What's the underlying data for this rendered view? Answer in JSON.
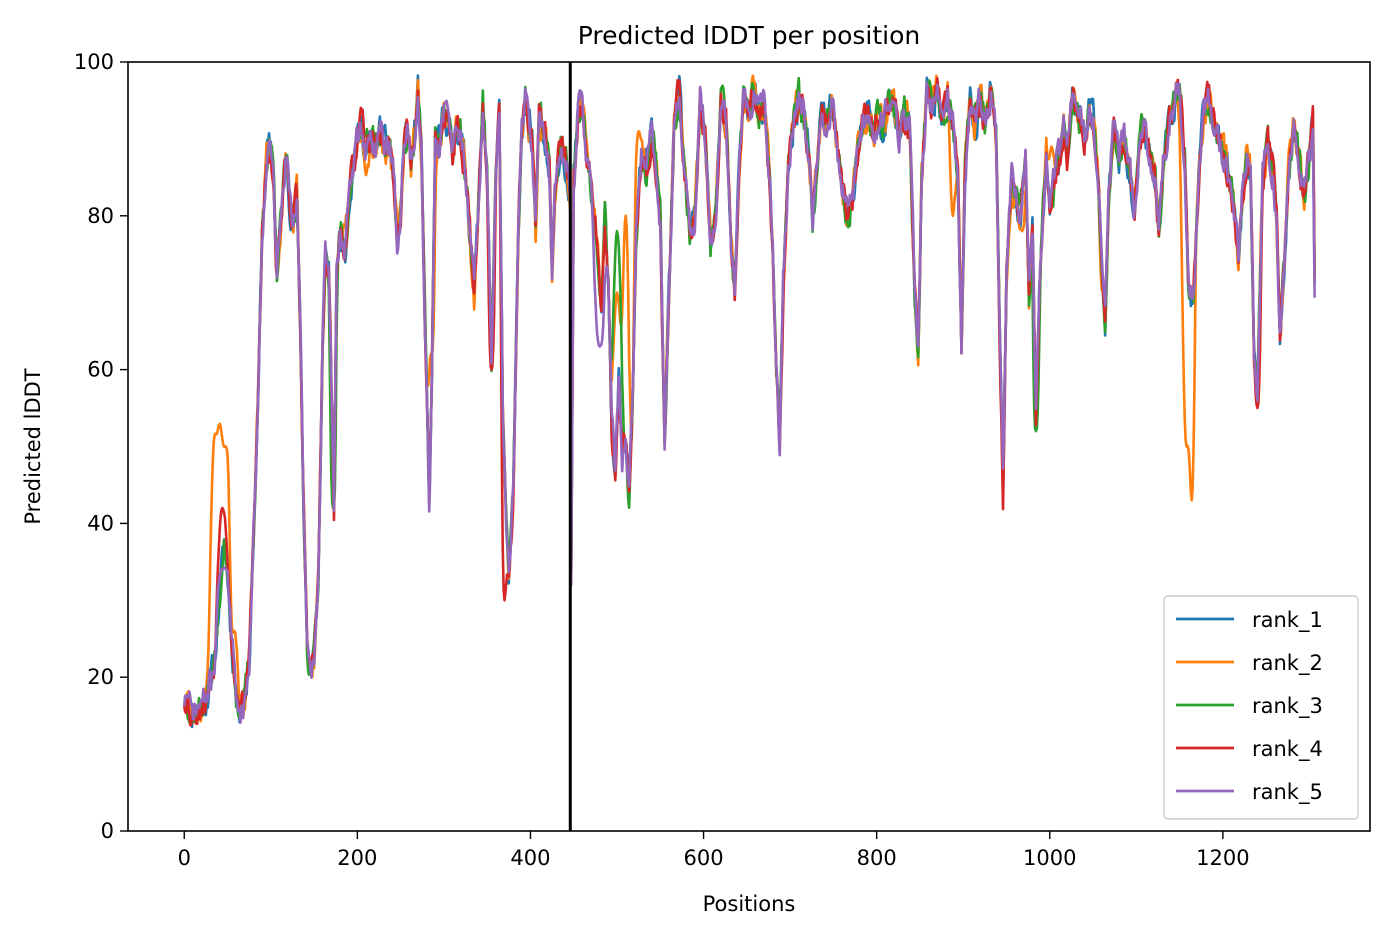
{
  "chart_data": {
    "type": "line",
    "title": "Predicted lDDT per position",
    "xlabel": "Positions",
    "ylabel": "Predicted lDDT",
    "xlim": [
      -65,
      1370
    ],
    "ylim": [
      0,
      100
    ],
    "xticks": [
      0,
      200,
      400,
      600,
      800,
      1000,
      1200
    ],
    "yticks": [
      0,
      20,
      40,
      60,
      80,
      100
    ],
    "grid": false,
    "legend_position": "lower-right",
    "vline": {
      "x": 446,
      "color": "#000000"
    },
    "base_profile": [
      [
        0,
        17
      ],
      [
        3,
        18
      ],
      [
        8,
        15
      ],
      [
        15,
        16
      ],
      [
        25,
        17
      ],
      [
        35,
        22
      ],
      [
        42,
        32
      ],
      [
        46,
        38
      ],
      [
        50,
        33
      ],
      [
        55,
        24
      ],
      [
        60,
        18
      ],
      [
        65,
        16
      ],
      [
        70,
        17
      ],
      [
        75,
        22
      ],
      [
        85,
        55
      ],
      [
        90,
        78
      ],
      [
        95,
        88
      ],
      [
        100,
        89
      ],
      [
        103,
        85
      ],
      [
        107,
        72
      ],
      [
        112,
        80
      ],
      [
        118,
        88
      ],
      [
        122,
        82
      ],
      [
        126,
        79
      ],
      [
        130,
        83
      ],
      [
        134,
        65
      ],
      [
        138,
        42
      ],
      [
        142,
        24
      ],
      [
        146,
        21
      ],
      [
        150,
        23
      ],
      [
        155,
        33
      ],
      [
        160,
        64
      ],
      [
        163,
        74
      ],
      [
        167,
        72
      ],
      [
        170,
        58
      ],
      [
        173,
        43
      ],
      [
        176,
        72
      ],
      [
        180,
        78
      ],
      [
        186,
        76
      ],
      [
        190,
        82
      ],
      [
        195,
        86
      ],
      [
        200,
        90
      ],
      [
        205,
        92
      ],
      [
        210,
        88
      ],
      [
        216,
        90
      ],
      [
        220,
        89
      ],
      [
        226,
        91
      ],
      [
        232,
        89
      ],
      [
        238,
        89
      ],
      [
        242,
        85
      ],
      [
        246,
        77
      ],
      [
        250,
        80
      ],
      [
        254,
        89
      ],
      [
        258,
        91
      ],
      [
        262,
        87
      ],
      [
        266,
        91
      ],
      [
        270,
        96
      ],
      [
        274,
        88
      ],
      [
        277,
        72
      ],
      [
        280,
        58
      ],
      [
        283,
        43
      ],
      [
        286,
        58
      ],
      [
        290,
        90
      ],
      [
        295,
        89
      ],
      [
        300,
        94
      ],
      [
        305,
        92
      ],
      [
        310,
        88
      ],
      [
        315,
        92
      ],
      [
        320,
        90
      ],
      [
        325,
        86
      ],
      [
        330,
        78
      ],
      [
        335,
        70
      ],
      [
        340,
        82
      ],
      [
        345,
        95
      ],
      [
        350,
        85
      ],
      [
        355,
        61
      ],
      [
        360,
        85
      ],
      [
        364,
        93
      ],
      [
        368,
        55
      ],
      [
        372,
        40
      ],
      [
        375,
        32
      ],
      [
        380,
        43
      ],
      [
        386,
        78
      ],
      [
        390,
        91
      ],
      [
        394,
        95
      ],
      [
        398,
        92
      ],
      [
        402,
        90
      ],
      [
        406,
        78
      ],
      [
        410,
        93
      ],
      [
        414,
        92
      ],
      [
        418,
        90
      ],
      [
        422,
        86
      ],
      [
        425,
        72
      ],
      [
        428,
        82
      ],
      [
        432,
        87
      ],
      [
        436,
        89
      ],
      [
        440,
        87
      ],
      [
        444,
        85
      ],
      [
        446,
        83
      ],
      [
        447,
        32
      ],
      [
        450,
        85
      ],
      [
        455,
        93
      ],
      [
        460,
        95
      ],
      [
        465,
        88
      ],
      [
        470,
        84
      ],
      [
        474,
        80
      ],
      [
        478,
        74
      ],
      [
        482,
        66
      ],
      [
        486,
        80
      ],
      [
        490,
        72
      ],
      [
        494,
        52
      ],
      [
        498,
        47
      ],
      [
        502,
        58
      ],
      [
        506,
        49
      ],
      [
        510,
        52
      ],
      [
        514,
        44
      ],
      [
        518,
        55
      ],
      [
        522,
        78
      ],
      [
        528,
        88
      ],
      [
        534,
        86
      ],
      [
        540,
        91
      ],
      [
        546,
        85
      ],
      [
        550,
        80
      ],
      [
        555,
        50
      ],
      [
        560,
        70
      ],
      [
        566,
        92
      ],
      [
        572,
        96
      ],
      [
        578,
        85
      ],
      [
        584,
        78
      ],
      [
        590,
        80
      ],
      [
        596,
        95
      ],
      [
        602,
        90
      ],
      [
        608,
        76
      ],
      [
        614,
        80
      ],
      [
        620,
        95
      ],
      [
        626,
        92
      ],
      [
        632,
        76
      ],
      [
        636,
        70
      ],
      [
        640,
        83
      ],
      [
        646,
        95
      ],
      [
        652,
        92
      ],
      [
        658,
        97
      ],
      [
        664,
        93
      ],
      [
        670,
        95
      ],
      [
        676,
        85
      ],
      [
        680,
        75
      ],
      [
        684,
        60
      ],
      [
        688,
        51
      ],
      [
        692,
        70
      ],
      [
        698,
        86
      ],
      [
        704,
        92
      ],
      [
        710,
        95
      ],
      [
        716,
        93
      ],
      [
        722,
        88
      ],
      [
        726,
        80
      ],
      [
        730,
        85
      ],
      [
        736,
        94
      ],
      [
        742,
        92
      ],
      [
        748,
        95
      ],
      [
        754,
        90
      ],
      [
        760,
        84
      ],
      [
        766,
        80
      ],
      [
        772,
        82
      ],
      [
        778,
        88
      ],
      [
        784,
        92
      ],
      [
        790,
        94
      ],
      [
        796,
        90
      ],
      [
        802,
        93
      ],
      [
        808,
        92
      ],
      [
        814,
        95
      ],
      [
        820,
        94
      ],
      [
        826,
        90
      ],
      [
        832,
        93
      ],
      [
        838,
        92
      ],
      [
        844,
        70
      ],
      [
        848,
        62
      ],
      [
        852,
        85
      ],
      [
        858,
        96
      ],
      [
        864,
        94
      ],
      [
        870,
        97
      ],
      [
        876,
        93
      ],
      [
        882,
        95
      ],
      [
        888,
        92
      ],
      [
        894,
        84
      ],
      [
        898,
        63
      ],
      [
        902,
        86
      ],
      [
        908,
        94
      ],
      [
        914,
        92
      ],
      [
        920,
        95
      ],
      [
        926,
        92
      ],
      [
        932,
        96
      ],
      [
        938,
        90
      ],
      [
        942,
        65
      ],
      [
        946,
        44
      ],
      [
        950,
        72
      ],
      [
        956,
        85
      ],
      [
        960,
        82
      ],
      [
        966,
        80
      ],
      [
        972,
        88
      ],
      [
        976,
        70
      ],
      [
        980,
        78
      ],
      [
        984,
        53
      ],
      [
        988,
        70
      ],
      [
        992,
        80
      ],
      [
        996,
        88
      ],
      [
        1000,
        82
      ],
      [
        1006,
        85
      ],
      [
        1012,
        88
      ],
      [
        1016,
        92
      ],
      [
        1020,
        88
      ],
      [
        1026,
        96
      ],
      [
        1030,
        94
      ],
      [
        1036,
        92
      ],
      [
        1040,
        90
      ],
      [
        1046,
        94
      ],
      [
        1050,
        92
      ],
      [
        1056,
        85
      ],
      [
        1060,
        74
      ],
      [
        1064,
        66
      ],
      [
        1068,
        82
      ],
      [
        1074,
        92
      ],
      [
        1080,
        88
      ],
      [
        1086,
        90
      ],
      [
        1092,
        86
      ],
      [
        1098,
        80
      ],
      [
        1104,
        90
      ],
      [
        1110,
        92
      ],
      [
        1116,
        88
      ],
      [
        1122,
        84
      ],
      [
        1126,
        78
      ],
      [
        1132,
        88
      ],
      [
        1138,
        92
      ],
      [
        1144,
        95
      ],
      [
        1150,
        96
      ],
      [
        1156,
        88
      ],
      [
        1160,
        72
      ],
      [
        1166,
        68
      ],
      [
        1172,
        85
      ],
      [
        1178,
        94
      ],
      [
        1184,
        95
      ],
      [
        1190,
        92
      ],
      [
        1196,
        90
      ],
      [
        1202,
        88
      ],
      [
        1208,
        85
      ],
      [
        1214,
        80
      ],
      [
        1218,
        75
      ],
      [
        1222,
        82
      ],
      [
        1228,
        88
      ],
      [
        1232,
        86
      ],
      [
        1236,
        62
      ],
      [
        1240,
        58
      ],
      [
        1246,
        85
      ],
      [
        1252,
        90
      ],
      [
        1258,
        86
      ],
      [
        1262,
        80
      ],
      [
        1266,
        64
      ],
      [
        1270,
        72
      ],
      [
        1276,
        86
      ],
      [
        1282,
        92
      ],
      [
        1288,
        88
      ],
      [
        1294,
        82
      ],
      [
        1300,
        88
      ],
      [
        1304,
        92
      ],
      [
        1306,
        72
      ]
    ],
    "series": [
      {
        "name": "rank_1",
        "color": "#1f77b4",
        "seed": 11,
        "deviations": []
      },
      {
        "name": "rank_2",
        "color": "#ff7f0e",
        "seed": 23,
        "deviations": [
          [
            35,
            10,
            50
          ],
          [
            42,
            12,
            54
          ],
          [
            48,
            10,
            50
          ],
          [
            58,
            8,
            26
          ],
          [
            285,
            8,
            62
          ],
          [
            500,
            10,
            70
          ],
          [
            510,
            8,
            80
          ],
          [
            525,
            8,
            91
          ],
          [
            888,
            6,
            80
          ],
          [
            968,
            8,
            78
          ],
          [
            1002,
            8,
            89
          ],
          [
            1062,
            6,
            70
          ],
          [
            1158,
            10,
            50
          ],
          [
            1164,
            6,
            43
          ]
        ]
      },
      {
        "name": "rank_3",
        "color": "#2ca02c",
        "seed": 37,
        "deviations": [
          [
            172,
            6,
            42
          ],
          [
            500,
            10,
            78
          ],
          [
            984,
            6,
            52
          ]
        ]
      },
      {
        "name": "rank_4",
        "color": "#d62728",
        "seed": 53,
        "deviations": [
          [
            44,
            10,
            42
          ],
          [
            355,
            6,
            60
          ],
          [
            370,
            6,
            30
          ],
          [
            1240,
            6,
            55
          ]
        ]
      },
      {
        "name": "rank_5",
        "color": "#9467bd",
        "seed": 71,
        "deviations": [
          [
            44,
            10,
            34
          ],
          [
            480,
            12,
            63
          ]
        ]
      }
    ]
  }
}
